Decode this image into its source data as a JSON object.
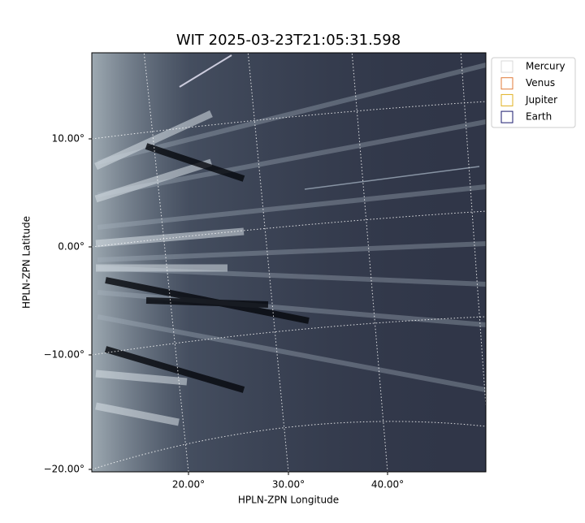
{
  "plot": {
    "title": "WIT 2025-03-23T21:05:31.598",
    "x_label": "HPLN-ZPN Longitude",
    "y_label": "HPLN-ZPN Latitude",
    "x_ticks": [
      "20.00°",
      "30.00°",
      "40.00°"
    ],
    "y_ticks": [
      "10.00°",
      "0.00°",
      "−10.00°",
      "−20.00°"
    ],
    "legend": [
      {
        "label": "Mercury",
        "color": "#d9d9d9"
      },
      {
        "label": "Venus",
        "color": "#e07b39"
      },
      {
        "label": "Jupiter",
        "color": "#e0b020"
      },
      {
        "label": "Earth",
        "color": "#1a1a6e"
      }
    ]
  }
}
